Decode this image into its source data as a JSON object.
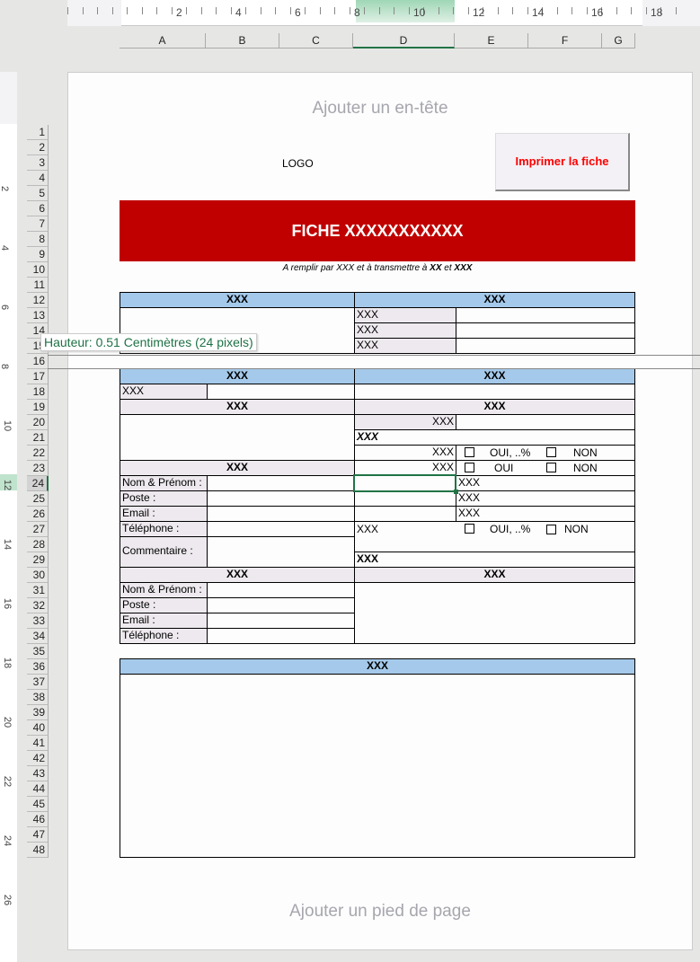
{
  "ruler": {
    "labels": [
      "2",
      "4",
      "6",
      "8",
      "10",
      "12",
      "14",
      "16",
      "18"
    ]
  },
  "columns": [
    "A",
    "B",
    "C",
    "D",
    "E",
    "F",
    "G"
  ],
  "rows": [
    "1",
    "2",
    "3",
    "4",
    "5",
    "6",
    "7",
    "8",
    "9",
    "10",
    "11",
    "12",
    "13",
    "14",
    "15",
    "16",
    "17",
    "18",
    "19",
    "20",
    "21",
    "22",
    "23",
    "24",
    "25",
    "26",
    "27",
    "28",
    "29",
    "30",
    "31",
    "32",
    "33",
    "34",
    "35",
    "36",
    "37",
    "38",
    "39",
    "40",
    "41",
    "42",
    "43",
    "44",
    "45",
    "46",
    "47",
    "48"
  ],
  "vruler": {
    "labels": [
      "2",
      "4",
      "6",
      "8",
      "10",
      "12",
      "14",
      "16",
      "18",
      "20",
      "22",
      "24",
      "26"
    ]
  },
  "header_placeholder": "Ajouter un en-tête",
  "footer_placeholder": "Ajouter un pied de page",
  "logo": "LOGO",
  "print_button": "Imprimer la fiche",
  "title": "FICHE XXXXXXXXXXX",
  "subtitle": {
    "text": "A remplir par XXX et à transmettre à",
    "b1": "XX",
    "et": "et",
    "b2": "XXX"
  },
  "tooltip": "Hauteur: 0.51 Centimètres (24 pixels)",
  "ph": "XXX",
  "labels": {
    "nom": "Nom & Prénom :",
    "poste": "Poste :",
    "email": "Email :",
    "tel": "Téléphone :",
    "comment": "Commentaire :"
  },
  "options": {
    "oui_pct": "OUI, ..%",
    "oui": "OUI",
    "non": "NON"
  },
  "colors": {
    "title_bg": "#c00000",
    "header_blue": "#a4c9ea",
    "label_gray": "#ede9ee",
    "print_text": "#ff0000",
    "selection": "#217346"
  }
}
